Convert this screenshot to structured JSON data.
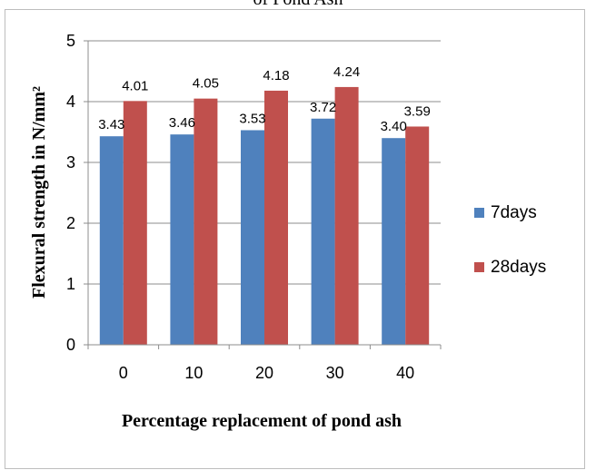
{
  "top_caption": "of Pond Ash",
  "chart_data": {
    "type": "bar",
    "categories": [
      "0",
      "10",
      "20",
      "30",
      "40"
    ],
    "series": [
      {
        "name": "7days",
        "values": [
          3.43,
          3.46,
          3.53,
          3.72,
          3.4
        ],
        "labels": [
          "3.43",
          "3.46",
          "3.53",
          "3.72",
          "3.40"
        ],
        "color": "#4f81bd"
      },
      {
        "name": "28days",
        "values": [
          4.01,
          4.05,
          4.18,
          4.24,
          3.59
        ],
        "labels": [
          "4.01",
          "4.05",
          "4.18",
          "4.24",
          "3.59"
        ],
        "color": "#c0504d"
      }
    ],
    "xlabel": "Percentage replacement of pond ash",
    "ylabel": "Flexural strength in N/mm²",
    "ylim": [
      0,
      5
    ],
    "yticks": [
      "0",
      "1",
      "2",
      "3",
      "4",
      "5"
    ],
    "grid": true,
    "legend_position": "right"
  }
}
